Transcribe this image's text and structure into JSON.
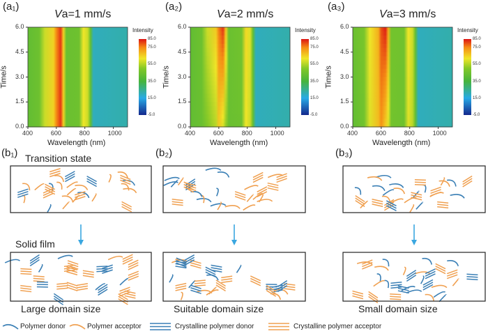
{
  "panels_a": [
    {
      "label": "(a₁)",
      "title_italic": "V",
      "title_rest": "a=1 mm/s"
    },
    {
      "label": "(a₂)",
      "title_italic": "V",
      "title_rest": "a=2 mm/s"
    },
    {
      "label": "(a₃)",
      "title_italic": "V",
      "title_rest": "a=3  mm/s"
    }
  ],
  "panels_b": [
    {
      "label": "(b₁)",
      "caption": "Large domain size",
      "top_label": "Transition state",
      "bottom_label": "Solid film"
    },
    {
      "label": "(b₂)",
      "caption": "Suitable domain size"
    },
    {
      "label": "(b₃)",
      "caption": "Small domain size"
    }
  ],
  "legend": [
    {
      "label": "Polymer donor",
      "kind": "curve",
      "color": "#3a7fb5"
    },
    {
      "label": "Polymer acceptor",
      "kind": "curve",
      "color": "#f0a050"
    },
    {
      "label": "Crystalline polymer donor",
      "kind": "lines",
      "color": "#3a7fb5"
    },
    {
      "label": "Crystalline polymer acceptor",
      "kind": "lines",
      "color": "#f0a050"
    }
  ],
  "chart_data": [
    {
      "type": "heatmap",
      "title": "Va=1 mm/s",
      "xlabel": "Wavelength (nm)",
      "ylabel": "Time/s",
      "xlim": [
        400,
        1100
      ],
      "ylim": [
        0,
        6
      ],
      "xticks": [
        "400",
        "600",
        "800",
        "1000"
      ],
      "yticks": [
        "0.0",
        "1.5",
        "3.0",
        "4.5",
        "6.0"
      ],
      "colorbar": {
        "label": "Intensity",
        "ticks": [
          "85.0",
          "75.0",
          "55.0",
          "35.0",
          "15.0",
          "-5.0"
        ],
        "range": [
          -5,
          85
        ]
      },
      "wavelengths": [
        400,
        480,
        520,
        580,
        600,
        630,
        650,
        670,
        760,
        790,
        820,
        840,
        860,
        1100
      ],
      "intensity_t0": [
        42,
        45,
        58,
        65,
        75,
        82,
        65,
        44,
        45,
        62,
        58,
        42,
        20,
        22
      ],
      "intensity_t6": [
        42,
        45,
        58,
        65,
        75,
        82,
        65,
        44,
        45,
        62,
        58,
        42,
        20,
        22
      ]
    },
    {
      "type": "heatmap",
      "title": "Va=2 mm/s",
      "xlabel": "Wavelength (nm)",
      "ylabel": "Time/s",
      "xlim": [
        400,
        1100
      ],
      "ylim": [
        0,
        6
      ],
      "xticks": [
        "400",
        "600",
        "800",
        "1000"
      ],
      "yticks": [
        "0.0",
        "1.5",
        "3.0",
        "4.5",
        "6.0"
      ],
      "colorbar": {
        "label": "Intensity",
        "ticks": [
          "85.0",
          "75.0",
          "55.0",
          "35.0",
          "15.0",
          "-5.0"
        ],
        "range": [
          -5,
          85
        ]
      },
      "wavelengths": [
        400,
        480,
        520,
        580,
        600,
        630,
        650,
        670,
        760,
        790,
        820,
        840,
        860,
        1100
      ],
      "intensity_t0": [
        42,
        44,
        50,
        56,
        66,
        60,
        52,
        44,
        45,
        62,
        58,
        42,
        20,
        22
      ],
      "intensity_t6": [
        42,
        45,
        58,
        66,
        76,
        82,
        66,
        44,
        46,
        64,
        60,
        42,
        20,
        22
      ]
    },
    {
      "type": "heatmap",
      "title": "Va=3 mm/s",
      "xlabel": "Wavelength (nm)",
      "ylabel": "Time/s",
      "xlim": [
        400,
        1100
      ],
      "ylim": [
        0,
        6
      ],
      "xticks": [
        "400",
        "600",
        "800",
        "1000"
      ],
      "yticks": [
        "0.0",
        "1.5",
        "3.0",
        "4.5",
        "6.0"
      ],
      "colorbar": {
        "label": "Intensity",
        "ticks": [
          "85.0",
          "75.0",
          "55.0",
          "35.0",
          "15.0",
          "-5.0"
        ],
        "range": [
          -5,
          85
        ]
      },
      "wavelengths": [
        400,
        480,
        520,
        580,
        600,
        630,
        650,
        670,
        760,
        790,
        820,
        840,
        860,
        1100
      ],
      "intensity_t0": [
        42,
        46,
        60,
        68,
        74,
        66,
        60,
        46,
        45,
        60,
        56,
        42,
        20,
        22
      ],
      "intensity_t6": [
        44,
        48,
        62,
        70,
        80,
        84,
        70,
        46,
        46,
        62,
        58,
        42,
        20,
        22
      ]
    }
  ]
}
